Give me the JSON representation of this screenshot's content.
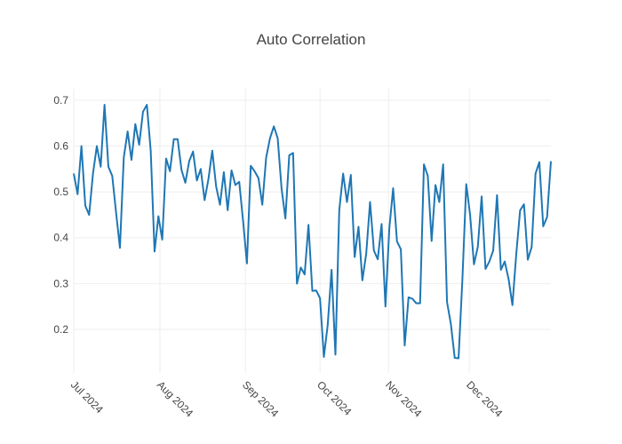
{
  "chart_data": {
    "type": "line",
    "title": "Auto Correlation",
    "x": [
      0,
      1,
      2,
      3,
      4,
      5,
      6,
      7,
      8,
      9,
      10,
      11,
      12,
      13,
      14,
      15,
      16,
      17,
      18,
      19,
      20,
      21,
      22,
      23,
      24,
      25,
      26,
      27,
      28,
      29,
      30,
      31,
      32,
      33,
      34,
      35,
      36,
      37,
      38,
      39,
      40,
      41,
      42,
      43,
      44,
      45,
      46,
      47,
      48,
      49,
      50,
      51,
      52,
      53,
      54,
      55,
      56,
      57,
      58,
      59,
      60,
      61,
      62,
      63,
      64,
      65,
      66,
      67,
      68,
      69,
      70,
      71,
      72,
      73,
      74,
      75,
      76,
      77,
      78,
      79,
      80,
      81,
      82,
      83,
      84,
      85,
      86,
      87,
      88,
      89,
      90,
      91,
      92,
      93,
      94,
      95,
      96,
      97,
      98,
      99,
      100,
      101,
      102,
      103,
      104,
      105,
      106,
      107,
      108,
      109,
      110,
      111,
      112,
      113,
      114,
      115,
      116,
      117,
      118,
      119,
      120,
      121,
      122,
      123,
      124
    ],
    "series": [
      {
        "color": "#1f77b4",
        "values": [
          0.54,
          0.495,
          0.6,
          0.47,
          0.45,
          0.54,
          0.6,
          0.555,
          0.69,
          0.555,
          0.535,
          0.455,
          0.378,
          0.575,
          0.632,
          0.57,
          0.648,
          0.603,
          0.675,
          0.69,
          0.59,
          0.37,
          0.447,
          0.396,
          0.573,
          0.545,
          0.615,
          0.615,
          0.548,
          0.52,
          0.567,
          0.588,
          0.525,
          0.55,
          0.482,
          0.528,
          0.59,
          0.512,
          0.472,
          0.543,
          0.46,
          0.547,
          0.515,
          0.522,
          0.437,
          0.344,
          0.557,
          0.545,
          0.53,
          0.472,
          0.575,
          0.617,
          0.643,
          0.617,
          0.508,
          0.442,
          0.58,
          0.585,
          0.3,
          0.335,
          0.32,
          0.428,
          0.284,
          0.285,
          0.268,
          0.14,
          0.21,
          0.33,
          0.145,
          0.46,
          0.54,
          0.478,
          0.537,
          0.358,
          0.424,
          0.307,
          0.365,
          0.478,
          0.372,
          0.353,
          0.43,
          0.25,
          0.42,
          0.508,
          0.392,
          0.375,
          0.165,
          0.27,
          0.267,
          0.257,
          0.257,
          0.56,
          0.535,
          0.393,
          0.515,
          0.478,
          0.56,
          0.26,
          0.212,
          0.138,
          0.137,
          0.31,
          0.517,
          0.45,
          0.342,
          0.38,
          0.49,
          0.332,
          0.348,
          0.372,
          0.493,
          0.33,
          0.348,
          0.31,
          0.253,
          0.365,
          0.46,
          0.473,
          0.352,
          0.38,
          0.54,
          0.565,
          0.425,
          0.445,
          0.567
        ]
      }
    ],
    "xlim": [
      0,
      124
    ],
    "xticks": [
      {
        "value": 0,
        "label": "Jul 2024"
      },
      {
        "value": 22.4,
        "label": "Aug 2024"
      },
      {
        "value": 44.6,
        "label": "Sep 2024"
      },
      {
        "value": 64,
        "label": "Oct 2024"
      },
      {
        "value": 81.8,
        "label": "Nov 2024"
      },
      {
        "value": 102.8,
        "label": "Dec 2024"
      }
    ],
    "ylim": [
      0.105,
      0.725
    ],
    "yticks": [
      0.2,
      0.3,
      0.4,
      0.5,
      0.6,
      0.7
    ],
    "grid": true
  }
}
